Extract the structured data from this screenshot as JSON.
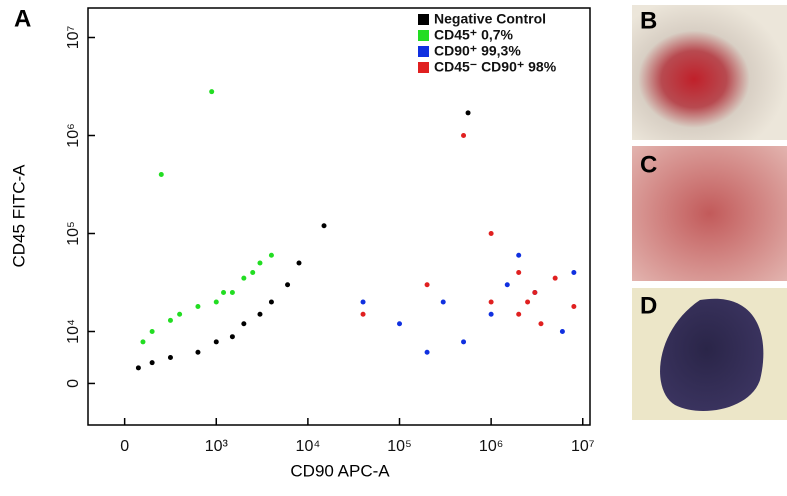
{
  "chart_data": {
    "type": "scatter",
    "scale": "biexponential",
    "legend": "upper right",
    "xlabel": "CD90 APC-A",
    "ylabel": "CD45 FITC-A",
    "xlim": [
      -400,
      12000000
    ],
    "ylim": [
      -8000,
      20000000
    ],
    "xticks": [
      0,
      {
        "value": 1000,
        "label": "10³"
      },
      {
        "value": 10000,
        "label": "10⁴"
      },
      {
        "value": 100000,
        "label": "10⁵"
      },
      {
        "value": 1000000,
        "label": "10⁶"
      },
      {
        "value": 10000000,
        "label": "10⁷"
      }
    ],
    "yticks": [
      0,
      {
        "value": 10000,
        "label": "10⁴"
      },
      {
        "value": 100000,
        "label": "10⁵"
      },
      {
        "value": 1000000,
        "label": "10⁶"
      },
      {
        "value": 10000000,
        "label": "10⁷"
      }
    ],
    "series": [
      {
        "name": "Negative Control",
        "color": "#000000",
        "x": [
          150,
          300,
          500,
          800,
          1000,
          1500,
          2000,
          3000,
          4000,
          6000,
          8000,
          15000,
          560000
        ],
        "values": [
          3000,
          4000,
          5000,
          6000,
          8000,
          9000,
          12000,
          15000,
          20000,
          30000,
          50000,
          120000,
          1700000
        ]
      },
      {
        "name": "CD45⁺ 0,7%",
        "color": "#22dd22",
        "x": [
          200,
          300,
          500,
          600,
          800,
          1000,
          1200,
          1500,
          2000,
          2500,
          3000,
          4000,
          950,
          400
        ],
        "values": [
          8000,
          10000,
          13000,
          15000,
          18000,
          20000,
          25000,
          25000,
          35000,
          40000,
          50000,
          60000,
          2800000,
          400000
        ]
      },
      {
        "name": "CD90⁺ 99,3%",
        "color": "#1030e0",
        "x": [
          100000,
          200000,
          300000,
          500000,
          1000000,
          1500000,
          2000000,
          3000000,
          6000000,
          8000000,
          40000
        ],
        "values": [
          12000,
          6000,
          20000,
          8000,
          15000,
          30000,
          60000,
          25000,
          10000,
          40000,
          20000
        ]
      },
      {
        "name": "CD45⁻ CD90⁺ 98%",
        "color": "#e02020",
        "x": [
          40000,
          200000,
          500000,
          1000000,
          1000000,
          2000000,
          2500000,
          3000000,
          3500000,
          5000000,
          2000000,
          8000000
        ],
        "values": [
          15000,
          30000,
          1000000,
          20000,
          100000,
          15000,
          20000,
          25000,
          12000,
          35000,
          40000,
          18000
        ]
      }
    ]
  },
  "panel_labels": [
    "A",
    "B",
    "C",
    "D"
  ]
}
